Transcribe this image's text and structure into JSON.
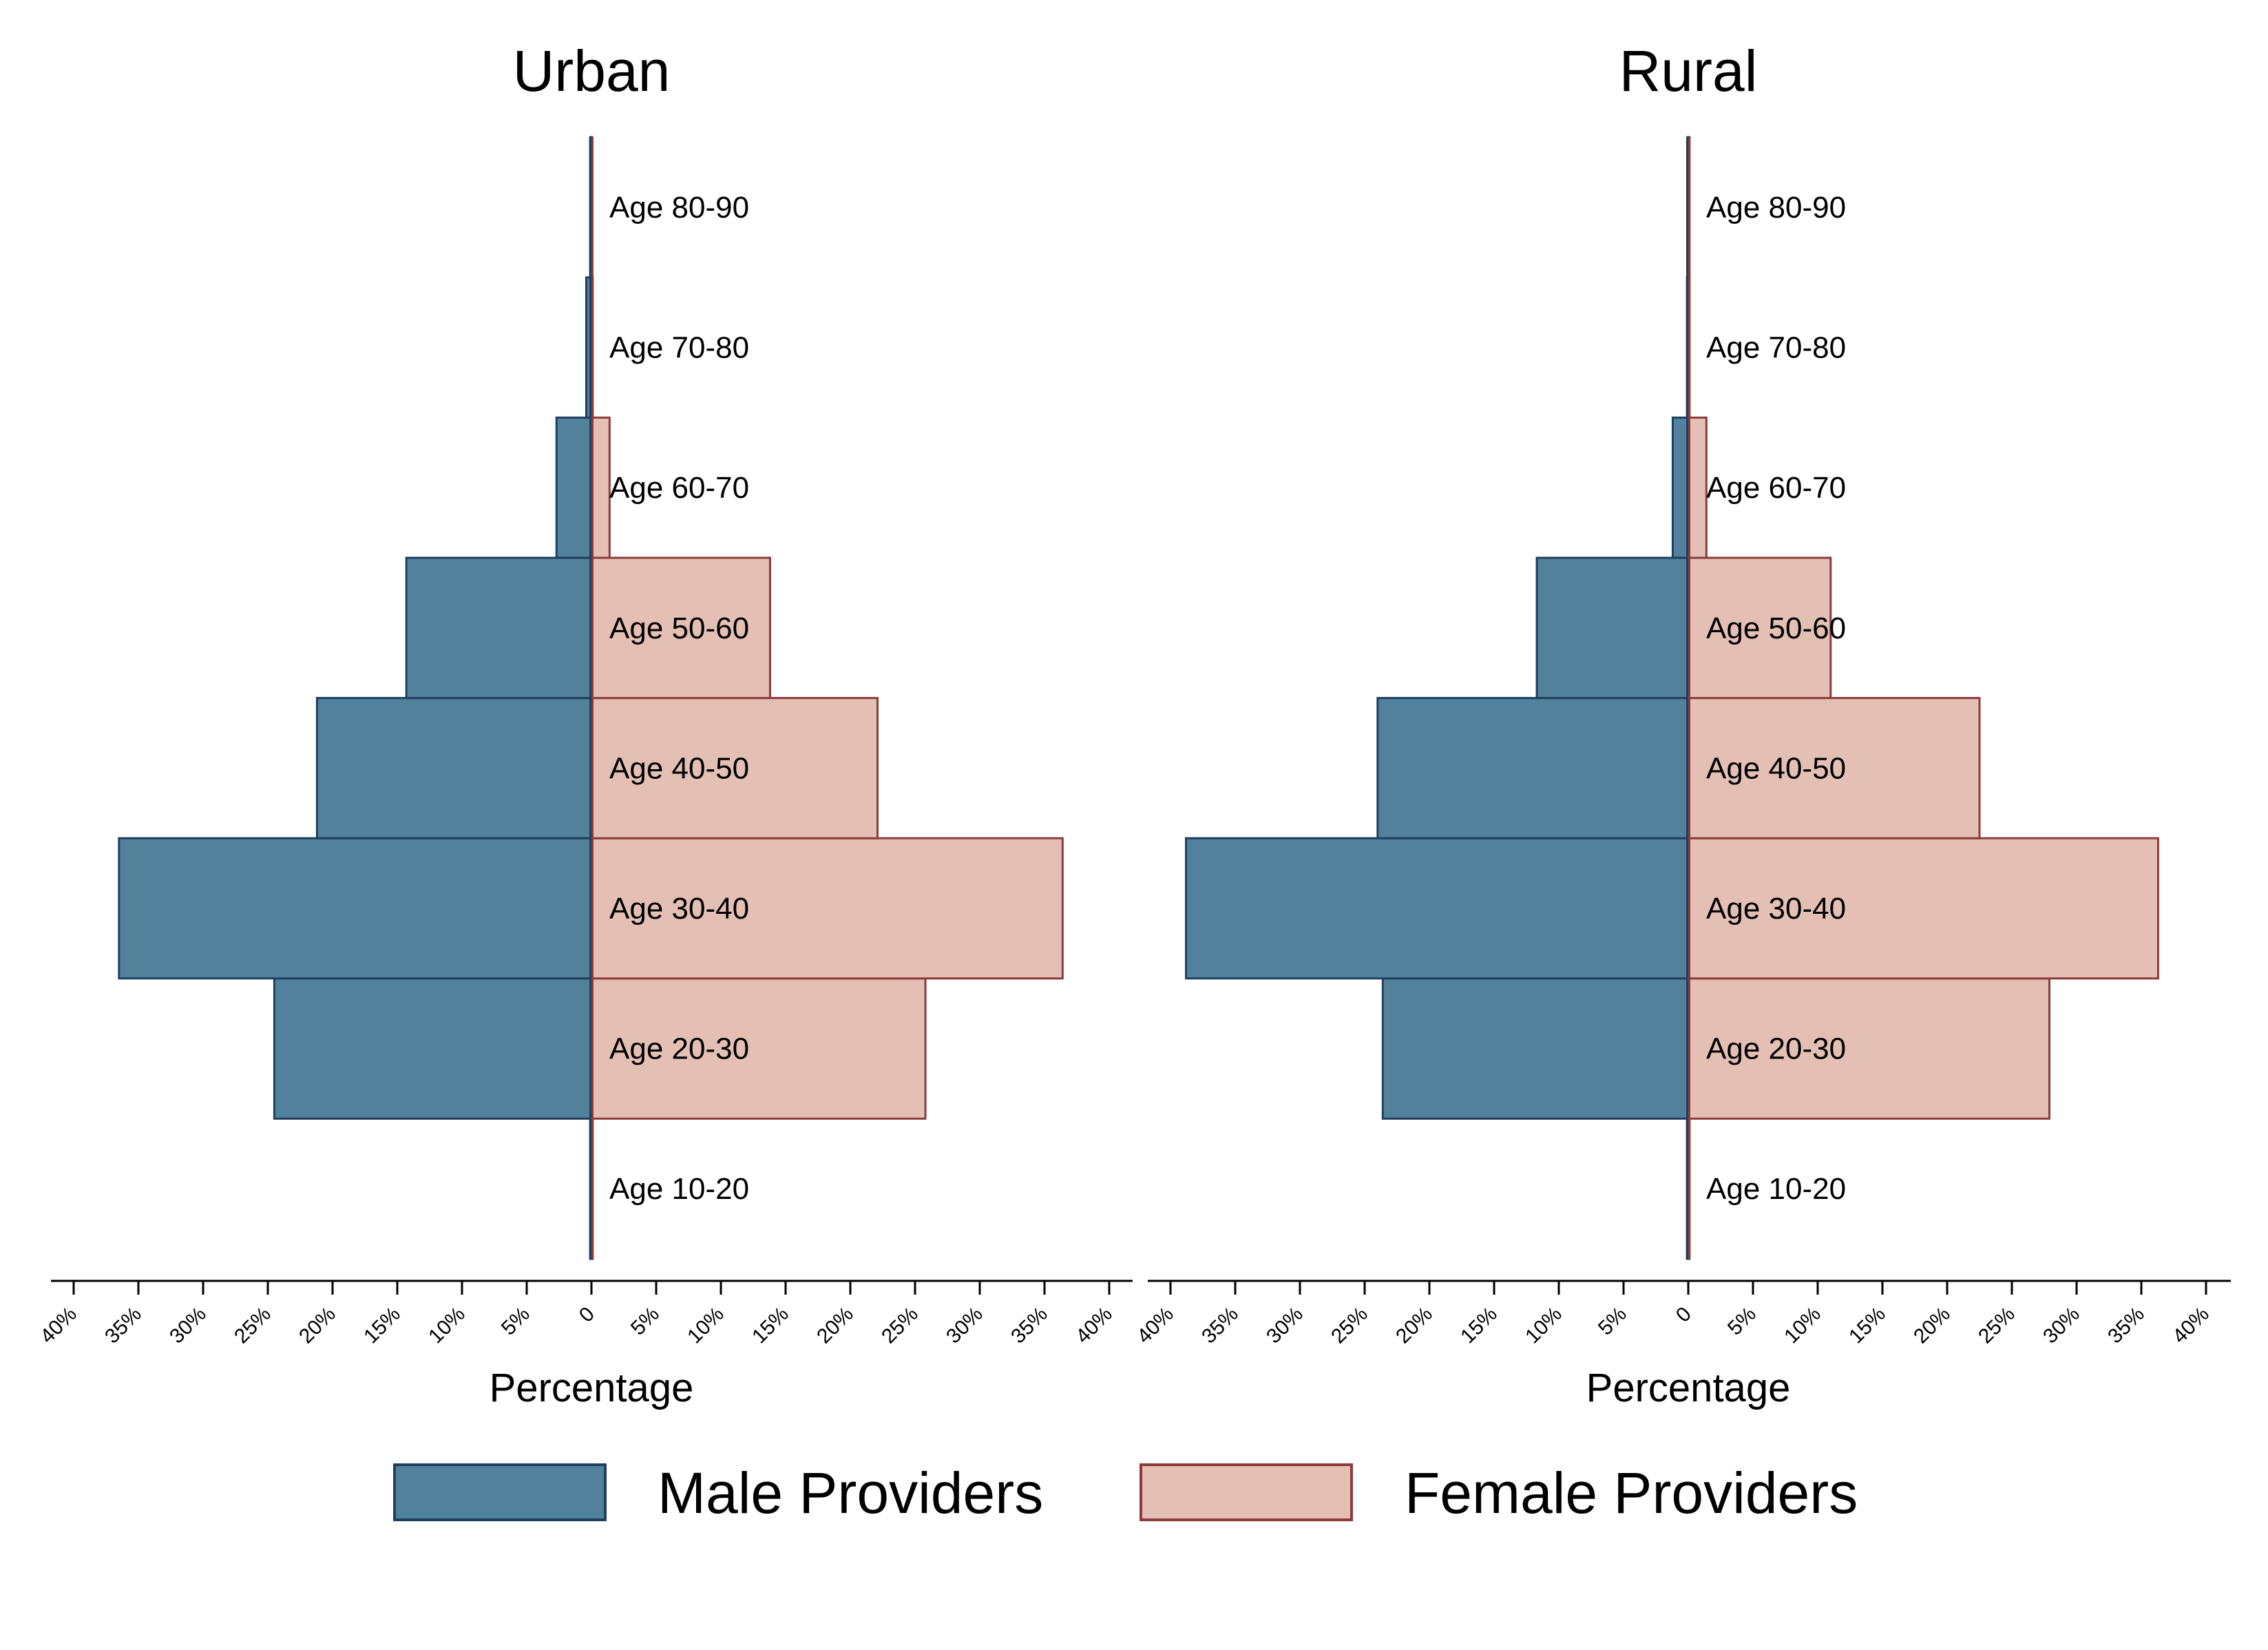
{
  "colors": {
    "male_fill": "#52829b",
    "male_stroke": "#1f3f60",
    "female_fill": "#e4c0b4",
    "female_stroke": "#8c3b3b"
  },
  "legend": {
    "male_label": "Male Providers",
    "female_label": "Female Providers"
  },
  "chart_data": [
    {
      "type": "bar",
      "orientation": "population-pyramid",
      "title": "Urban",
      "xlabel": "Percentage",
      "xlim": [
        -40,
        40
      ],
      "x_ticks": [
        -40,
        -35,
        -30,
        -25,
        -20,
        -15,
        -10,
        -5,
        0,
        5,
        10,
        15,
        20,
        25,
        30,
        35,
        40
      ],
      "x_tick_labels": [
        "40%",
        "35%",
        "30%",
        "25%",
        "20%",
        "15%",
        "10%",
        "5%",
        "0",
        "5%",
        "10%",
        "15%",
        "20%",
        "25%",
        "30%",
        "35%",
        "40%"
      ],
      "categories": [
        "Age 10-20",
        "Age 20-30",
        "Age 30-40",
        "Age 40-50",
        "Age 50-60",
        "Age 60-70",
        "Age 70-80",
        "Age 80-90"
      ],
      "series": [
        {
          "name": "Male Providers",
          "values": [
            0.1,
            24.5,
            36.5,
            21.2,
            14.3,
            2.7,
            0.4,
            0.1
          ]
        },
        {
          "name": "Female Providers",
          "values": [
            0.1,
            25.8,
            36.4,
            22.1,
            13.8,
            1.4,
            0.1,
            0.05
          ]
        }
      ]
    },
    {
      "type": "bar",
      "orientation": "population-pyramid",
      "title": "Rural",
      "xlabel": "Percentage",
      "xlim": [
        -40,
        40
      ],
      "x_ticks": [
        -40,
        -35,
        -30,
        -25,
        -20,
        -15,
        -10,
        -5,
        0,
        5,
        10,
        15,
        20,
        25,
        30,
        35,
        40
      ],
      "x_tick_labels": [
        "40%",
        "35%",
        "30%",
        "25%",
        "20%",
        "15%",
        "10%",
        "5%",
        "0",
        "5%",
        "10%",
        "15%",
        "20%",
        "25%",
        "30%",
        "35%",
        "40%"
      ],
      "categories": [
        "Age 10-20",
        "Age 20-30",
        "Age 30-40",
        "Age 40-50",
        "Age 50-60",
        "Age 60-70",
        "Age 70-80",
        "Age 80-90"
      ],
      "series": [
        {
          "name": "Male Providers",
          "values": [
            0.1,
            23.6,
            38.8,
            24.0,
            11.7,
            1.2,
            0.1,
            0.05
          ]
        },
        {
          "name": "Female Providers",
          "values": [
            0.1,
            27.9,
            36.3,
            22.5,
            11.0,
            1.4,
            0.1,
            0.1
          ]
        }
      ]
    }
  ]
}
